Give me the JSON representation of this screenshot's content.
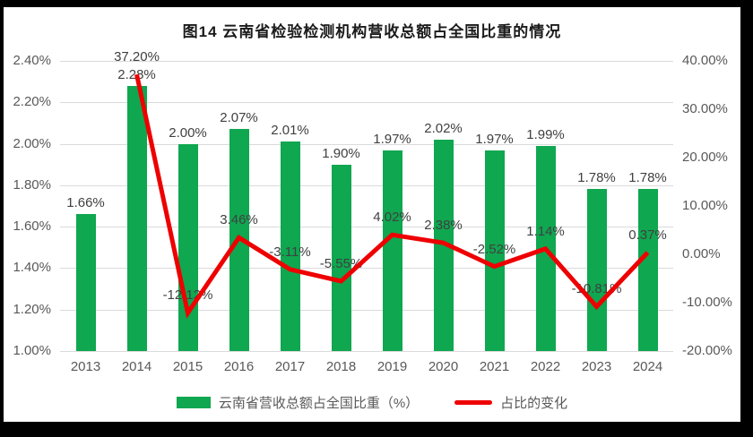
{
  "frame_color": "#000000",
  "title": "图14  云南省检验检测机构营收总额占全国比重的情况",
  "chart_data": {
    "type": "combo-bar-line",
    "categories": [
      "2013",
      "2014",
      "2015",
      "2016",
      "2017",
      "2018",
      "2019",
      "2020",
      "2021",
      "2022",
      "2023",
      "2024"
    ],
    "series": [
      {
        "name": "云南省营收总额占全国比重（%）",
        "type": "bar",
        "axis": "left",
        "color": "#0fa750",
        "values": [
          1.66,
          2.28,
          2.0,
          2.07,
          2.01,
          1.9,
          1.97,
          2.02,
          1.97,
          1.99,
          1.78,
          1.78
        ],
        "labels": [
          "1.66%",
          "2.28%",
          "2.00%",
          "2.07%",
          "2.01%",
          "1.90%",
          "1.97%",
          "2.02%",
          "1.97%",
          "1.99%",
          "1.78%",
          "1.78%"
        ]
      },
      {
        "name": "占比的变化",
        "type": "line",
        "axis": "right",
        "color": "#ee0000",
        "values": [
          null,
          37.2,
          -12.12,
          3.46,
          -3.11,
          -5.55,
          4.02,
          2.38,
          -2.52,
          1.14,
          -10.81,
          0.37
        ],
        "labels": [
          null,
          "37.20%",
          "-12.12%",
          "3.46%",
          "-3.11%",
          "-5.55%",
          "4.02%",
          "2.38%",
          "-2.52%",
          "1.14%",
          "-10.81%",
          "0.37%"
        ]
      }
    ],
    "left_axis": {
      "min": 1.0,
      "max": 2.4,
      "tick_labels": [
        "2.40%",
        "2.20%",
        "2.00%",
        "1.80%",
        "1.60%",
        "1.40%",
        "1.20%",
        "1.00%"
      ]
    },
    "right_axis": {
      "min": -20,
      "max": 40,
      "tick_labels": [
        "40.00%",
        "30.00%",
        "20.00%",
        "10.00%",
        "0.00%",
        "-10.00%",
        "-20.00%"
      ]
    },
    "grid": true,
    "legend_position": "bottom"
  },
  "legend": {
    "items": [
      {
        "label": "云南省营收总额占全国比重（%）",
        "swatch": "bar",
        "color": "#0fa750"
      },
      {
        "label": "占比的变化",
        "swatch": "line",
        "color": "#ee0000"
      }
    ]
  }
}
